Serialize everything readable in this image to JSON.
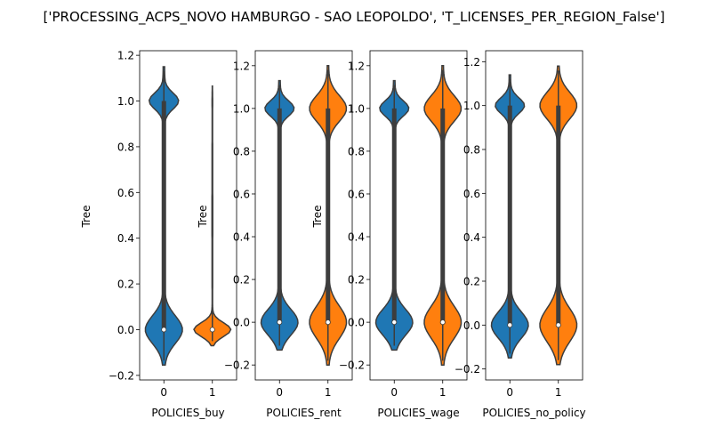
{
  "title": "['PROCESSING_ACPS_NOVO HAMBURGO - SAO LEOPOLDO', 'T_LICENSES_PER_REGION_False']",
  "colors": {
    "series0": "#1f77b4",
    "series1": "#ff7f0e",
    "line": "#3d3d3d"
  },
  "chart_data": [
    {
      "type": "violin",
      "xlabel": "POLICIES_buy",
      "ylabel": "Tree",
      "ylim": [
        -0.22,
        1.22
      ],
      "yticks": [
        -0.2,
        0.0,
        0.2,
        0.4,
        0.6,
        0.8,
        1.0,
        1.2
      ],
      "ytick_labels": [
        "−0.2",
        "0.0",
        "0.2",
        "0.4",
        "0.6",
        "0.8",
        "1.0",
        "1.2"
      ],
      "categories": [
        "0",
        "1"
      ],
      "series": [
        {
          "name": "0",
          "min": -0.155,
          "max": 1.15,
          "q1": 0.0,
          "median": 0.0,
          "q3": 1.0
        },
        {
          "name": "1",
          "min": -0.07,
          "max": 1.065,
          "q1": 0.0,
          "median": 0.0,
          "q3": 0.0
        }
      ]
    },
    {
      "type": "violin",
      "xlabel": "POLICIES_rent",
      "ylabel": "Tree",
      "ylim": [
        -0.27,
        1.27
      ],
      "yticks": [
        -0.2,
        0.0,
        0.2,
        0.4,
        0.6,
        0.8,
        1.0,
        1.2
      ],
      "ytick_labels": [
        "−0.2",
        "0.0",
        "0.2",
        "0.4",
        "0.6",
        "0.8",
        "1.0",
        "1.2"
      ],
      "categories": [
        "0",
        "1"
      ],
      "series": [
        {
          "name": "0",
          "min": -0.13,
          "max": 1.13,
          "q1": 0.0,
          "median": 0.0,
          "q3": 1.0
        },
        {
          "name": "1",
          "min": -0.2,
          "max": 1.2,
          "q1": 0.0,
          "median": 0.0,
          "q3": 1.0
        }
      ]
    },
    {
      "type": "violin",
      "xlabel": "POLICIES_wage",
      "ylabel": "Tree",
      "ylim": [
        -0.27,
        1.27
      ],
      "yticks": [
        -0.2,
        0.0,
        0.2,
        0.4,
        0.6,
        0.8,
        1.0,
        1.2
      ],
      "ytick_labels": [
        "−0.2",
        "0.0",
        "0.2",
        "0.4",
        "0.6",
        "0.8",
        "1.0",
        "1.2"
      ],
      "categories": [
        "0",
        "1"
      ],
      "series": [
        {
          "name": "0",
          "min": -0.13,
          "max": 1.13,
          "q1": 0.0,
          "median": 0.0,
          "q3": 1.0
        },
        {
          "name": "1",
          "min": -0.2,
          "max": 1.2,
          "q1": 0.0,
          "median": 0.0,
          "q3": 1.0
        }
      ]
    },
    {
      "type": "violin",
      "xlabel": "POLICIES_no_policy",
      "ylabel": "",
      "ylim": [
        -0.25,
        1.25
      ],
      "yticks": [
        -0.2,
        0.0,
        0.2,
        0.4,
        0.6,
        0.8,
        1.0,
        1.2
      ],
      "ytick_labels": [
        "−0.2",
        "0.0",
        "0.2",
        "0.4",
        "0.6",
        "0.8",
        "1.0",
        "1.2"
      ],
      "categories": [
        "0",
        "1"
      ],
      "series": [
        {
          "name": "0",
          "min": -0.15,
          "max": 1.14,
          "q1": 0.0,
          "median": 0.0,
          "q3": 1.0
        },
        {
          "name": "1",
          "min": -0.18,
          "max": 1.18,
          "q1": 0.0,
          "median": 0.0,
          "q3": 1.0
        }
      ]
    }
  ]
}
